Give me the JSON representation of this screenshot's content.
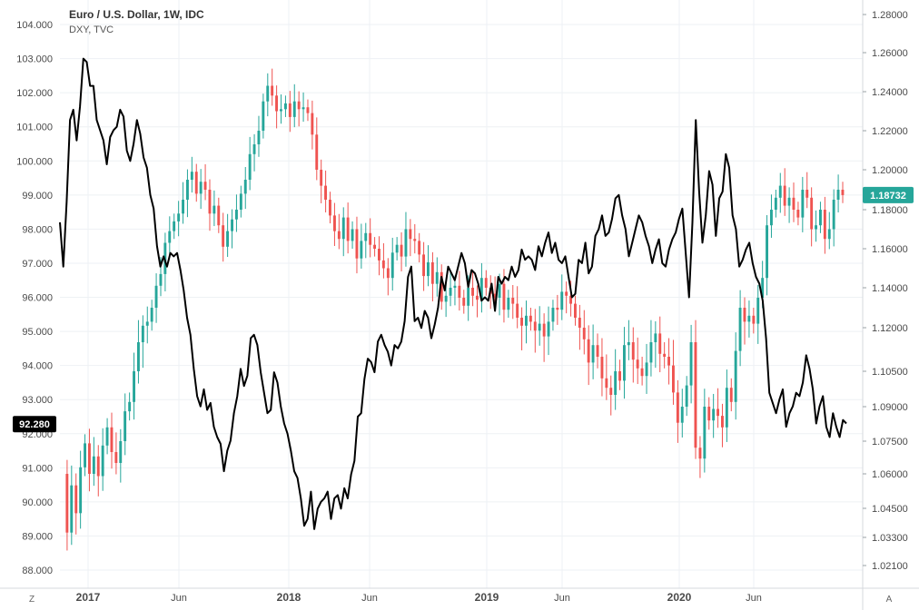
{
  "legend": {
    "main_title": "Euro / U.S. Dollar, 1W, IDC",
    "sub_title": "DXY, TVC"
  },
  "controls": {
    "scale_left_btn": "Z",
    "auto_scale_btn": "A"
  },
  "colors": {
    "up": "#26a69a",
    "down": "#ef5350",
    "dxy_line": "#000000",
    "grid": "#eef1f4",
    "axis_text": "#4a4a4a",
    "dxy_badge": "#000000",
    "eurusd_badge": "#26a69a"
  },
  "chart_data": {
    "type": "line",
    "x_tick_labels": [
      "2017",
      "Jun",
      "2018",
      "Jun",
      "2019",
      "Jun",
      "2020",
      "Jun"
    ],
    "left_axis": {
      "ticks": [
        "104.000",
        "103.000",
        "102.000",
        "101.000",
        "100.000",
        "99.000",
        "98.000",
        "97.000",
        "96.000",
        "95.000",
        "94.000",
        "93.000",
        "92.000",
        "91.000",
        "90.000",
        "89.000",
        "88.000"
      ],
      "ylim": [
        87.4,
        104.5
      ]
    },
    "right_axis": {
      "ticks": [
        "1.28000",
        "1.26000",
        "1.24000",
        "1.22000",
        "1.20000",
        "1.18000",
        "1.16000",
        "1.14000",
        "1.12000",
        "1.10500",
        "1.09000",
        "1.07500",
        "1.06000",
        "1.04500",
        "1.03300",
        "1.02100"
      ],
      "ylim": [
        1.015,
        1.283
      ]
    },
    "last_values": {
      "dxy": "92.280",
      "eurusd": "1.18732"
    },
    "series": [
      {
        "name": "DXY, TVC",
        "axis": "left",
        "style": "line",
        "values": [
          98.2,
          96.9,
          98.8,
          101.2,
          101.5,
          100.6,
          101.6,
          103.0,
          102.9,
          102.2,
          102.2,
          101.2,
          100.9,
          100.6,
          99.9,
          100.7,
          100.9,
          101.0,
          101.5,
          101.3,
          100.3,
          100.0,
          100.5,
          101.2,
          100.8,
          100.1,
          99.8,
          99.0,
          98.6,
          97.5,
          96.9,
          97.2,
          96.9,
          97.3,
          97.2,
          97.3,
          96.8,
          96.2,
          95.4,
          94.9,
          93.9,
          93.1,
          92.8,
          93.3,
          92.7,
          92.9,
          92.2,
          91.9,
          91.7,
          90.9,
          91.5,
          91.8,
          92.6,
          93.1,
          93.9,
          93.4,
          93.7,
          94.8,
          94.9,
          94.6,
          93.8,
          93.2,
          92.6,
          92.7,
          93.8,
          93.5,
          92.8,
          92.3,
          92.0,
          91.5,
          90.9,
          90.7,
          90.1,
          89.3,
          89.5,
          90.3,
          89.2,
          89.8,
          90.0,
          90.1,
          90.3,
          89.5,
          90.1,
          90.2,
          89.8,
          90.4,
          90.1,
          90.8,
          91.2,
          92.5,
          92.6,
          93.6,
          94.2,
          94.1,
          93.8,
          94.7,
          94.9,
          94.6,
          94.4,
          94.0,
          94.6,
          94.5,
          94.7,
          95.3,
          96.6,
          96.9,
          95.3,
          95.4,
          95.1,
          95.6,
          95.4,
          94.8,
          95.2,
          95.7,
          96.6,
          96.2,
          96.9,
          96.7,
          96.5,
          96.9,
          97.3,
          97.0,
          96.3,
          96.8,
          96.7,
          96.4,
          95.9,
          96.0,
          95.9,
          96.4,
          95.6,
          96.6,
          96.4,
          96.6,
          96.5,
          96.9,
          96.6,
          96.8,
          97.4,
          97.1,
          97.2,
          97.1,
          96.8,
          97.5,
          97.2,
          97.6,
          97.9,
          97.3,
          97.6,
          97.1,
          97.0,
          97.2,
          96.6,
          96.0,
          96.1,
          97.1,
          97.0,
          97.6,
          96.7,
          96.9,
          97.8,
          98.0,
          98.4,
          97.8,
          97.9,
          98.3,
          98.9,
          99.0,
          98.4,
          98.0,
          97.2,
          97.6,
          98.0,
          98.4,
          98.2,
          97.8,
          97.5,
          97.0,
          97.4,
          97.7,
          97.0,
          96.9,
          97.4,
          97.7,
          97.9,
          98.3,
          98.6,
          97.3,
          96.0,
          98.2,
          101.2,
          99.1,
          97.6,
          98.4,
          99.7,
          99.3,
          97.8,
          98.9,
          99.1,
          100.2,
          99.8,
          98.4,
          98.0,
          96.9,
          97.1,
          97.4,
          97.6,
          97.0,
          96.6,
          96.4,
          95.9,
          94.8,
          93.2,
          92.9,
          92.6,
          93.0,
          93.3,
          92.2,
          92.6,
          92.8,
          93.2,
          93.1,
          93.5,
          94.3,
          93.9,
          93.3,
          92.3,
          92.8,
          93.1,
          92.2,
          91.9,
          92.6,
          92.2,
          91.9,
          92.4,
          92.3
        ]
      },
      {
        "name": "Euro / U.S. Dollar, 1W, IDC",
        "axis": "right",
        "style": "candlestick",
        "values": [
          1.06,
          1.035,
          1.055,
          1.043,
          1.063,
          1.074,
          1.06,
          1.068,
          1.059,
          1.073,
          1.081,
          1.07,
          1.065,
          1.075,
          1.088,
          1.092,
          1.105,
          1.115,
          1.121,
          1.123,
          1.13,
          1.141,
          1.147,
          1.163,
          1.169,
          1.174,
          1.178,
          1.185,
          1.195,
          1.199,
          1.188,
          1.194,
          1.19,
          1.178,
          1.182,
          1.172,
          1.161,
          1.169,
          1.175,
          1.18,
          1.188,
          1.195,
          1.208,
          1.213,
          1.22,
          1.235,
          1.243,
          1.238,
          1.23,
          1.231,
          1.234,
          1.227,
          1.235,
          1.231,
          1.232,
          1.229,
          1.218,
          1.2,
          1.192,
          1.185,
          1.177,
          1.169,
          1.165,
          1.176,
          1.164,
          1.17,
          1.155,
          1.164,
          1.168,
          1.162,
          1.16,
          1.154,
          1.15,
          1.145,
          1.158,
          1.162,
          1.156,
          1.17,
          1.165,
          1.164,
          1.157,
          1.146,
          1.153,
          1.142,
          1.148,
          1.133,
          1.136,
          1.14,
          1.141,
          1.135,
          1.131,
          1.14,
          1.136,
          1.134,
          1.145,
          1.14,
          1.137,
          1.135,
          1.142,
          1.129,
          1.135,
          1.132,
          1.125,
          1.121,
          1.126,
          1.123,
          1.119,
          1.122,
          1.117,
          1.123,
          1.13,
          1.129,
          1.138,
          1.136,
          1.132,
          1.125,
          1.12,
          1.116,
          1.108,
          1.114,
          1.11,
          1.102,
          1.098,
          1.095,
          1.105,
          1.101,
          1.114,
          1.115,
          1.109,
          1.106,
          1.103,
          1.108,
          1.115,
          1.118,
          1.111,
          1.11,
          1.107,
          1.096,
          1.083,
          1.09,
          1.099,
          1.115,
          1.072,
          1.067,
          1.09,
          1.084,
          1.089,
          1.086,
          1.081,
          1.098,
          1.092,
          1.112,
          1.13,
          1.123,
          1.126,
          1.122,
          1.135,
          1.145,
          1.172,
          1.18,
          1.186,
          1.192,
          1.182,
          1.186,
          1.18,
          1.176,
          1.19,
          1.186,
          1.17,
          1.172,
          1.18,
          1.165,
          1.17,
          1.185,
          1.19,
          1.1873
        ]
      }
    ]
  }
}
